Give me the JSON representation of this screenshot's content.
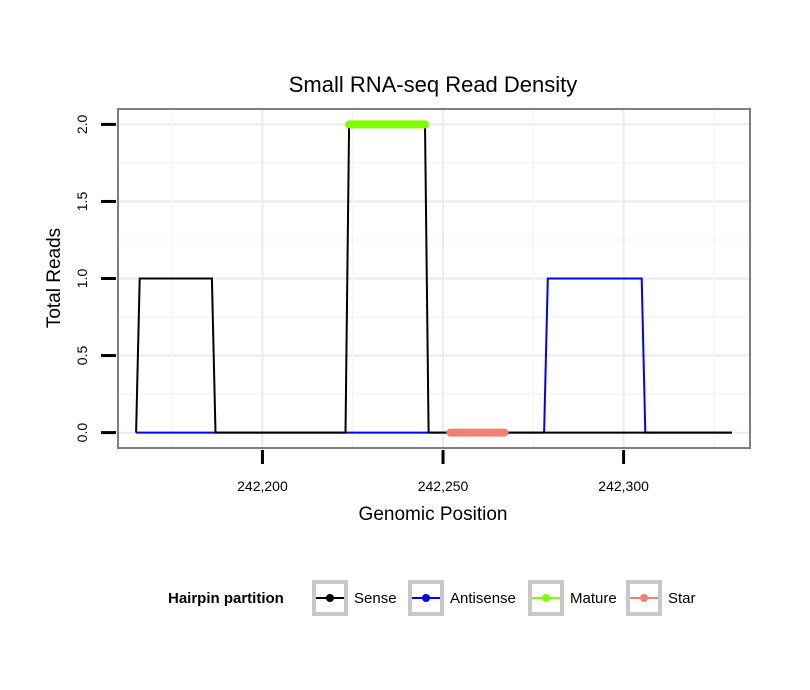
{
  "chart_data": {
    "type": "line",
    "title": "Small RNA-seq Read Density",
    "xlabel": "Genomic Position",
    "ylabel": "Total Reads",
    "xlim": [
      242160,
      242335
    ],
    "ylim": [
      -0.1,
      2.1
    ],
    "x_ticks": [
      242200,
      242250,
      242300
    ],
    "x_tick_labels": [
      "242,200",
      "242,250",
      "242,300"
    ],
    "y_ticks": [
      0,
      0.5,
      1,
      1.5,
      2
    ],
    "y_tick_labels": [
      "0.0",
      "0.5",
      "1.0",
      "1.5",
      "2.0"
    ],
    "grid": true,
    "legend": {
      "title": "Hairpin partition",
      "position": "bottom",
      "entries": [
        "Sense",
        "Antisense",
        "Mature",
        "Star"
      ]
    },
    "series": [
      {
        "name": "Sense",
        "color": "#000000",
        "x": [
          242165,
          242166,
          242186,
          242187,
          242223,
          242224,
          242245,
          242246,
          242330
        ],
        "y": [
          0,
          1,
          1,
          0,
          0,
          2,
          2,
          0,
          0
        ]
      },
      {
        "name": "Antisense",
        "color": "#0000ff",
        "x": [
          242165,
          242278,
          242279,
          242305,
          242306,
          242330
        ],
        "y": [
          0,
          0,
          1,
          1,
          0,
          0
        ]
      },
      {
        "name": "Mature",
        "color": "#7fff00",
        "x": [
          242224,
          242245
        ],
        "y": [
          2,
          2
        ]
      },
      {
        "name": "Star",
        "color": "#f08070",
        "x": [
          242252,
          242267
        ],
        "y": [
          0,
          0
        ]
      }
    ]
  }
}
